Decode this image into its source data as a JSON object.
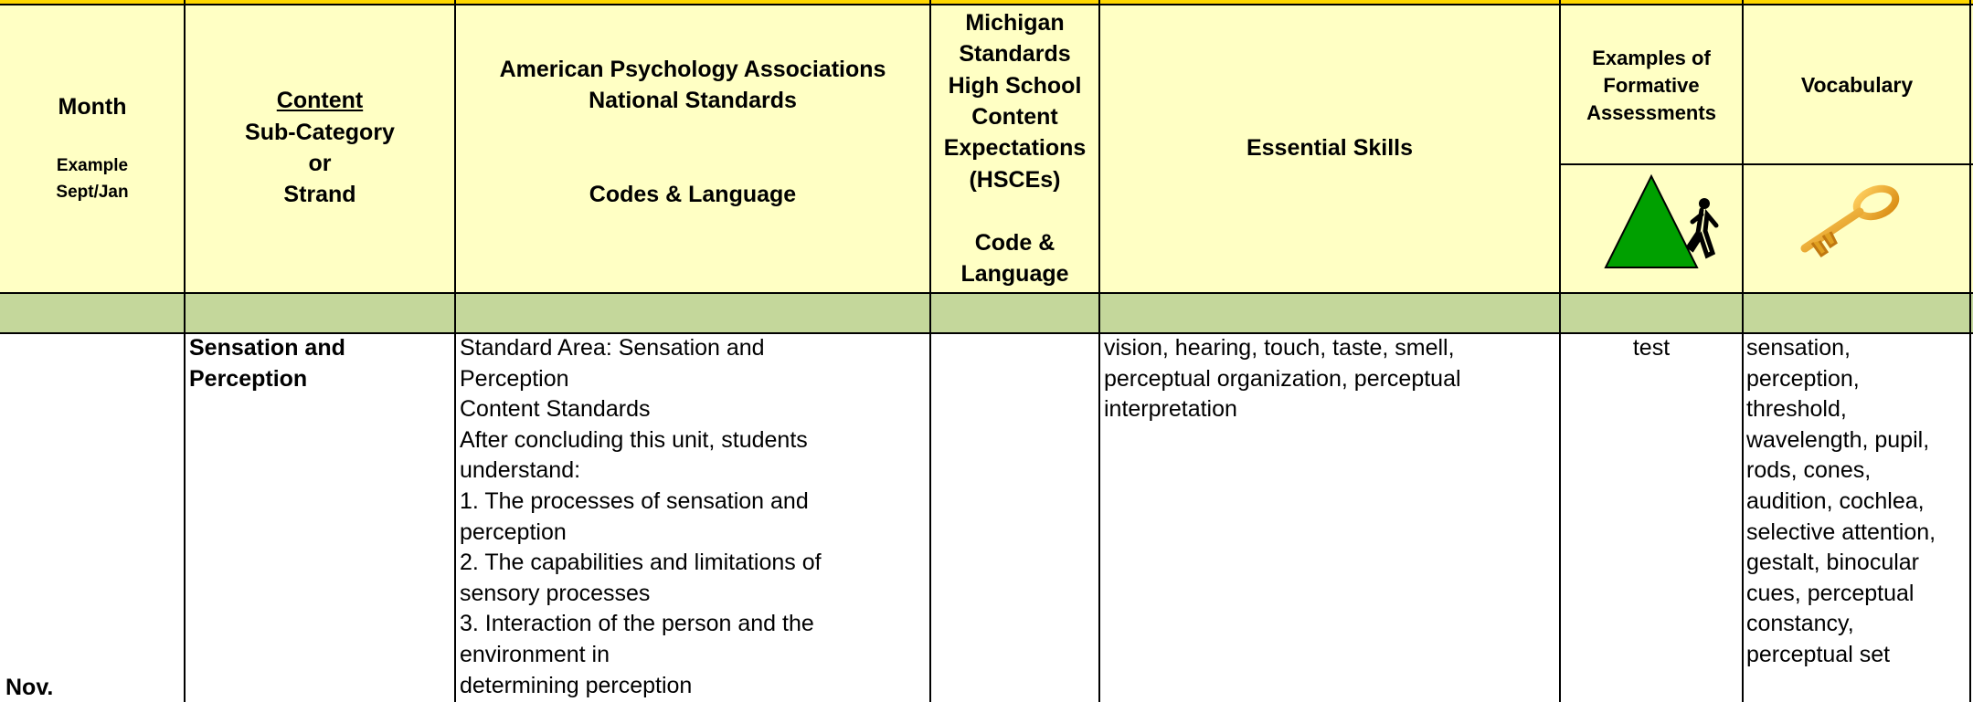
{
  "header": {
    "month": "Month",
    "month_example": [
      "Example",
      "Sept/Jan"
    ],
    "content": "Content",
    "content_rest": [
      "Sub-Category",
      "or",
      "Strand"
    ],
    "apa": [
      "American Psychology Associations",
      "National Standards"
    ],
    "apa_codes": "Codes & Language",
    "michigan": [
      "Michigan",
      "Standards",
      "High School",
      "Content",
      "Expectations",
      "(HSCEs)"
    ],
    "michigan_codes": [
      "Code &",
      "Language"
    ],
    "skills": "Essential Skills",
    "assessments": [
      "Examples of",
      "Formative",
      "Assessments"
    ],
    "vocabulary": "Vocabulary"
  },
  "row": {
    "month": "Nov.",
    "content": [
      "Sensation and",
      "Perception"
    ],
    "apa": [
      "Standard Area: Sensation and",
      "Perception",
      "Content Standards",
      "After concluding this unit, students",
      "understand:",
      "1. The processes of sensation and",
      "perception",
      "2. The capabilities and limitations of",
      "sensory processes",
      "3. Interaction of the person and the",
      "environment in",
      "determining perception"
    ],
    "skills": [
      "vision, hearing, touch, taste, smell,",
      "perceptual organization, perceptual",
      "interpretation"
    ],
    "assessment": "test",
    "vocabulary": [
      "sensation,",
      "perception,",
      "threshold,",
      "wavelength, pupil,",
      "rods, cones,",
      "audition, cochlea,",
      "selective attention,",
      "gestalt, binocular",
      "cues, perceptual",
      "constancy,",
      "perceptual set"
    ]
  }
}
